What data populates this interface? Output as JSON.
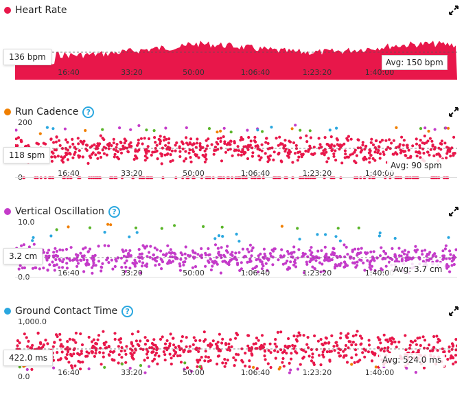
{
  "x_ticks": [
    "16:40",
    "33:20",
    "50:00",
    "1:06:40",
    "1:23:20",
    "1:40:00"
  ],
  "panels": [
    {
      "key": "heart_rate",
      "title": "Heart Rate",
      "dot_color": "#e8174a",
      "help": false,
      "y_top": "",
      "y_bottom": "",
      "current": "136 bpm",
      "avg": "Avg: 150 bpm",
      "chart_type": "area"
    },
    {
      "key": "run_cadence",
      "title": "Run Cadence",
      "dot_color": "#f07f00",
      "help": true,
      "y_top": "200",
      "y_bottom": "0",
      "current": "118 spm",
      "avg": "Avg: 90 spm",
      "chart_type": "scatter"
    },
    {
      "key": "vertical_oscillation",
      "title": "Vertical Oscillation",
      "dot_color": "#c43bc9",
      "help": true,
      "y_top": "10.0",
      "y_bottom": "0.0",
      "current": "3.2 cm",
      "avg": "Avg: 3.7 cm",
      "chart_type": "scatter"
    },
    {
      "key": "ground_contact_time",
      "title": "Ground Contact Time",
      "dot_color": "#2aa7df",
      "help": true,
      "y_top": "1,000.0",
      "y_bottom": "0.0",
      "current": "422.0 ms",
      "avg": "Avg: 524.0 ms",
      "chart_type": "scatter"
    }
  ],
  "colors": {
    "red": "#e8174a",
    "magenta": "#c43bc9",
    "orange": "#f07f00",
    "green": "#5ab52a",
    "blue": "#2aa7df"
  },
  "icons": {
    "expand": "expand-arrows-icon",
    "help": "question-circle-icon"
  }
}
